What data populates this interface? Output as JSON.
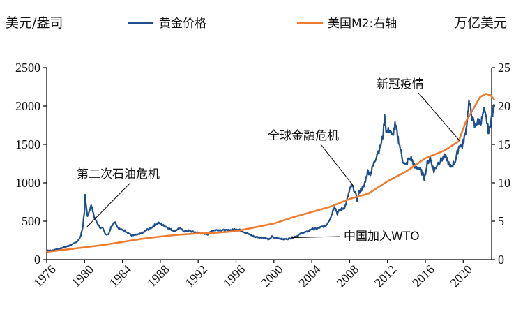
{
  "chart_data": {
    "type": "line",
    "left_axis_label": "美元/盎司",
    "right_axis_label": "万亿美元",
    "x_range": [
      1976,
      2023
    ],
    "x_ticks": [
      "1976",
      "1980",
      "1984",
      "1988",
      "1992",
      "1996",
      "2000",
      "2004",
      "2008",
      "2012",
      "2016",
      "2020"
    ],
    "y_left_range": [
      0,
      2500
    ],
    "y_left_ticks": [
      "0",
      "500",
      "1000",
      "1500",
      "2000",
      "2500"
    ],
    "y_right_range": [
      0,
      25
    ],
    "y_right_ticks": [
      "0",
      "5",
      "10",
      "15",
      "20",
      "25"
    ],
    "series": [
      {
        "name": "黄金价格",
        "axis": "left",
        "color": "#1f4e8c",
        "points": [
          [
            1976.0,
            125
          ],
          [
            1976.5,
            115
          ],
          [
            1977.0,
            135
          ],
          [
            1977.5,
            145
          ],
          [
            1978.0,
            170
          ],
          [
            1978.5,
            185
          ],
          [
            1979.0,
            225
          ],
          [
            1979.3,
            240
          ],
          [
            1979.6,
            310
          ],
          [
            1979.8,
            420
          ],
          [
            1980.0,
            650
          ],
          [
            1980.05,
            830
          ],
          [
            1980.15,
            700
          ],
          [
            1980.3,
            560
          ],
          [
            1980.5,
            640
          ],
          [
            1980.7,
            700
          ],
          [
            1980.85,
            650
          ],
          [
            1981.0,
            560
          ],
          [
            1981.3,
            480
          ],
          [
            1981.6,
            420
          ],
          [
            1981.9,
            410
          ],
          [
            1982.2,
            340
          ],
          [
            1982.5,
            320
          ],
          [
            1982.8,
            430
          ],
          [
            1983.0,
            460
          ],
          [
            1983.2,
            500
          ],
          [
            1983.5,
            420
          ],
          [
            1983.8,
            390
          ],
          [
            1984.2,
            380
          ],
          [
            1984.6,
            350
          ],
          [
            1985.0,
            310
          ],
          [
            1985.4,
            320
          ],
          [
            1985.8,
            330
          ],
          [
            1986.2,
            350
          ],
          [
            1986.6,
            390
          ],
          [
            1987.0,
            410
          ],
          [
            1987.4,
            450
          ],
          [
            1987.8,
            480
          ],
          [
            1988.2,
            450
          ],
          [
            1988.6,
            430
          ],
          [
            1989.0,
            400
          ],
          [
            1989.5,
            370
          ],
          [
            1990.0,
            410
          ],
          [
            1990.5,
            370
          ],
          [
            1991.0,
            375
          ],
          [
            1991.5,
            360
          ],
          [
            1992.0,
            350
          ],
          [
            1992.5,
            345
          ],
          [
            1993.0,
            330
          ],
          [
            1993.5,
            380
          ],
          [
            1994.0,
            385
          ],
          [
            1994.5,
            385
          ],
          [
            1995.0,
            380
          ],
          [
            1995.5,
            385
          ],
          [
            1996.0,
            400
          ],
          [
            1996.5,
            380
          ],
          [
            1997.0,
            350
          ],
          [
            1997.5,
            325
          ],
          [
            1998.0,
            295
          ],
          [
            1998.5,
            290
          ],
          [
            1999.0,
            285
          ],
          [
            1999.5,
            260
          ],
          [
            1999.8,
            300
          ],
          [
            2000.0,
            285
          ],
          [
            2000.5,
            280
          ],
          [
            2001.0,
            265
          ],
          [
            2001.5,
            270
          ],
          [
            2002.0,
            290
          ],
          [
            2002.5,
            310
          ],
          [
            2003.0,
            350
          ],
          [
            2003.5,
            360
          ],
          [
            2004.0,
            400
          ],
          [
            2004.5,
            400
          ],
          [
            2005.0,
            425
          ],
          [
            2005.5,
            440
          ],
          [
            2006.0,
            550
          ],
          [
            2006.4,
            700
          ],
          [
            2006.7,
            600
          ],
          [
            2007.0,
            650
          ],
          [
            2007.5,
            680
          ],
          [
            2008.0,
            900
          ],
          [
            2008.2,
            970
          ],
          [
            2008.5,
            900
          ],
          [
            2008.8,
            780
          ],
          [
            2009.0,
            880
          ],
          [
            2009.5,
            950
          ],
          [
            2009.9,
            1150
          ],
          [
            2010.2,
            1120
          ],
          [
            2010.5,
            1230
          ],
          [
            2010.9,
            1380
          ],
          [
            2011.2,
            1450
          ],
          [
            2011.5,
            1600
          ],
          [
            2011.7,
            1850
          ],
          [
            2011.9,
            1650
          ],
          [
            2012.2,
            1700
          ],
          [
            2012.5,
            1600
          ],
          [
            2012.8,
            1750
          ],
          [
            2013.0,
            1650
          ],
          [
            2013.3,
            1480
          ],
          [
            2013.6,
            1300
          ],
          [
            2013.9,
            1220
          ],
          [
            2014.2,
            1300
          ],
          [
            2014.5,
            1320
          ],
          [
            2014.9,
            1200
          ],
          [
            2015.3,
            1200
          ],
          [
            2015.7,
            1120
          ],
          [
            2015.9,
            1060
          ],
          [
            2016.2,
            1250
          ],
          [
            2016.5,
            1330
          ],
          [
            2016.9,
            1150
          ],
          [
            2017.3,
            1250
          ],
          [
            2017.7,
            1300
          ],
          [
            2018.0,
            1340
          ],
          [
            2018.3,
            1310
          ],
          [
            2018.6,
            1200
          ],
          [
            2018.9,
            1240
          ],
          [
            2019.2,
            1300
          ],
          [
            2019.6,
            1500
          ],
          [
            2019.9,
            1480
          ],
          [
            2020.1,
            1580
          ],
          [
            2020.3,
            1700
          ],
          [
            2020.6,
            2050
          ],
          [
            2020.9,
            1880
          ],
          [
            2021.2,
            1730
          ],
          [
            2021.5,
            1800
          ],
          [
            2021.9,
            1800
          ],
          [
            2022.2,
            1930
          ],
          [
            2022.5,
            1800
          ],
          [
            2022.7,
            1650
          ],
          [
            2022.9,
            1800
          ],
          [
            2023.1,
            1900
          ],
          [
            2023.3,
            2000
          ]
        ]
      },
      {
        "name": "美国M2:右轴",
        "axis": "right",
        "color": "#ed7d31",
        "points": [
          [
            1976,
            1.0
          ],
          [
            1978,
            1.3
          ],
          [
            1980,
            1.6
          ],
          [
            1982,
            1.9
          ],
          [
            1984,
            2.3
          ],
          [
            1986,
            2.7
          ],
          [
            1988,
            3.0
          ],
          [
            1990,
            3.25
          ],
          [
            1992,
            3.4
          ],
          [
            1994,
            3.5
          ],
          [
            1996,
            3.7
          ],
          [
            1998,
            4.2
          ],
          [
            2000,
            4.7
          ],
          [
            2002,
            5.5
          ],
          [
            2004,
            6.2
          ],
          [
            2006,
            6.9
          ],
          [
            2008,
            7.9
          ],
          [
            2010,
            8.6
          ],
          [
            2012,
            10.2
          ],
          [
            2014,
            11.5
          ],
          [
            2016,
            13.2
          ],
          [
            2018,
            14.2
          ],
          [
            2019.5,
            15.4
          ],
          [
            2020.3,
            18.0
          ],
          [
            2021,
            19.5
          ],
          [
            2021.8,
            21.2
          ],
          [
            2022.4,
            21.6
          ],
          [
            2022.9,
            21.4
          ],
          [
            2023.3,
            20.8
          ]
        ]
      }
    ],
    "annotations": [
      {
        "text": "第二次石油危机",
        "x": 1980.2,
        "y": 420
      },
      {
        "text": "全球金融危机",
        "x": 2008.4,
        "y": 960
      },
      {
        "text": "新冠疫情",
        "x": 2019.6,
        "y": 1550
      },
      {
        "text": "中国加入WTO",
        "x": 2001.8,
        "y": 285
      }
    ]
  }
}
